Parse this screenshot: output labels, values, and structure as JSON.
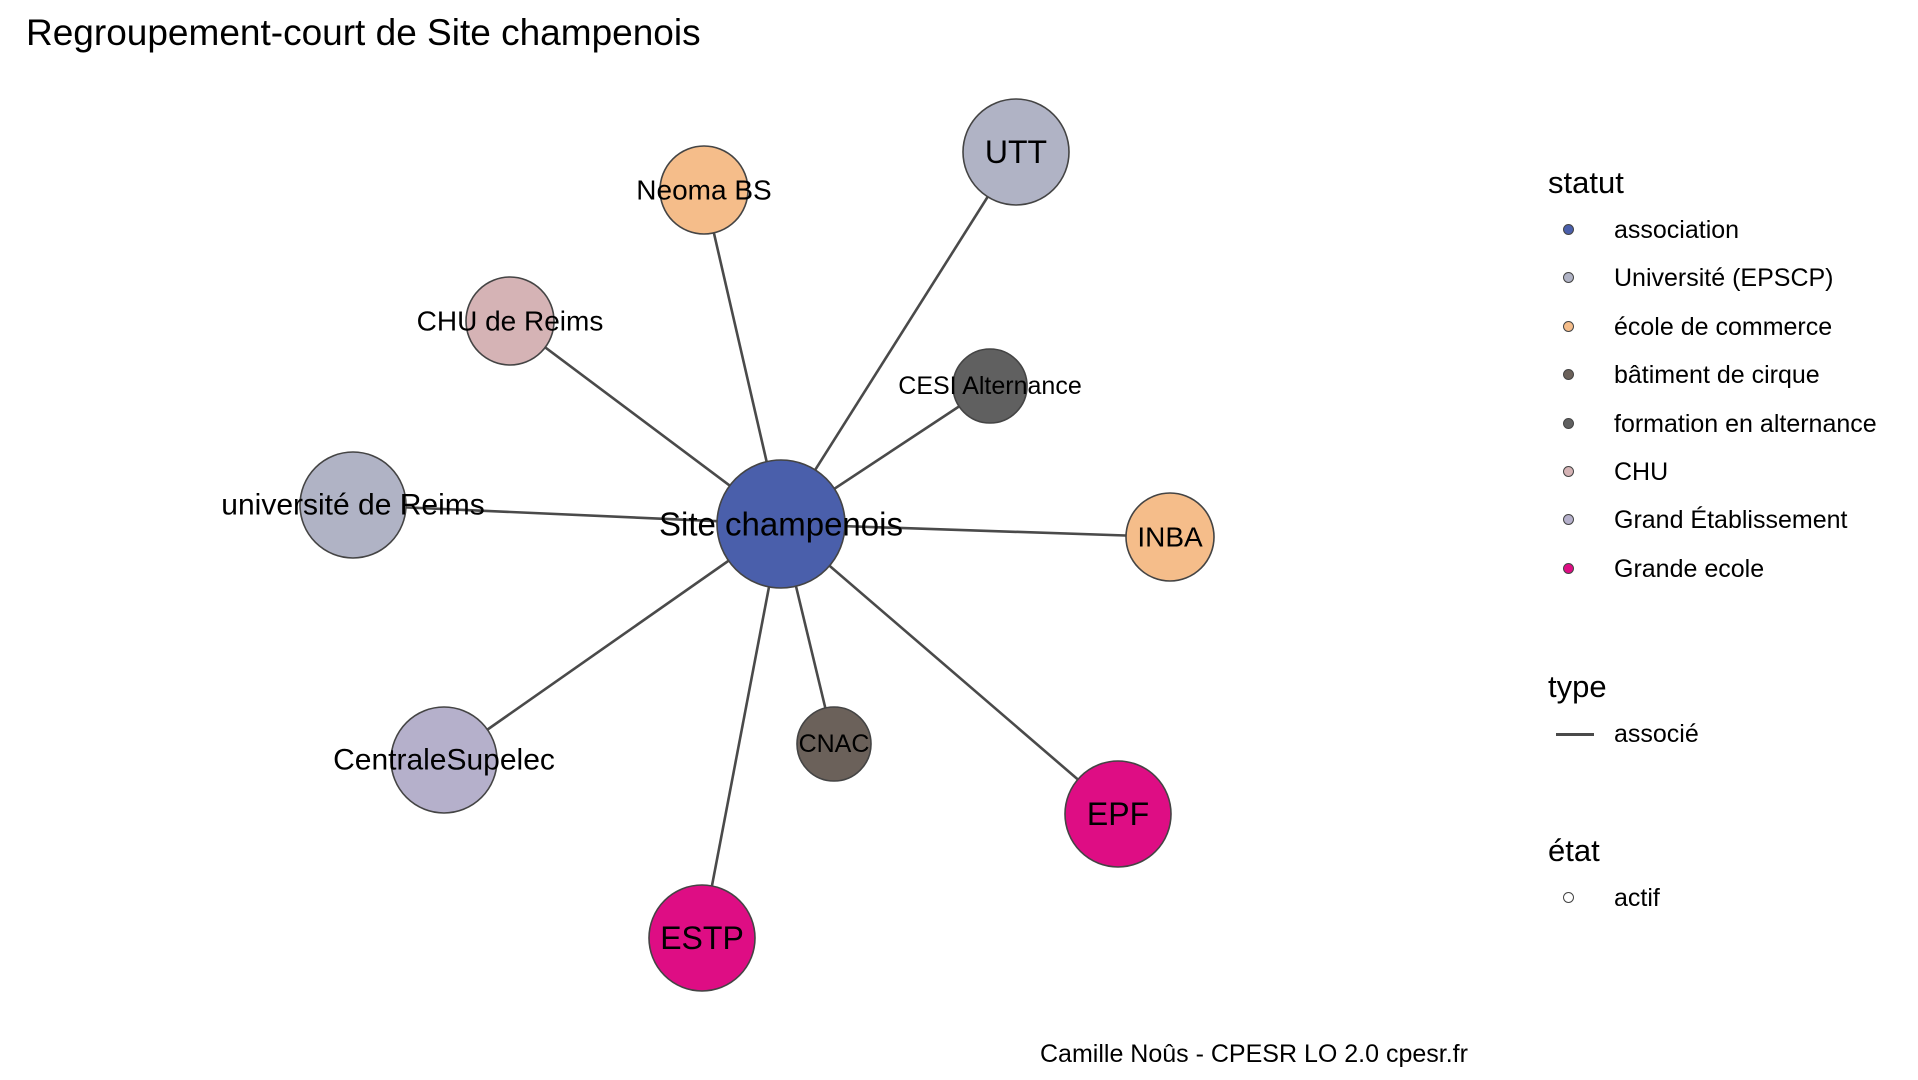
{
  "title": "Regroupement-court de Site champenois",
  "caption": "Camille Noûs - CPESR LO 2.0 cpesr.fr",
  "diagram": {
    "center": "site-champenois",
    "nodes": [
      {
        "id": "site-champenois",
        "label": "Site champenois",
        "statut": "association",
        "color": "#4a5fab"
      },
      {
        "id": "utt",
        "label": "UTT",
        "statut": "Université (EPSCP)",
        "color": "#b0b3c5"
      },
      {
        "id": "neoma-bs",
        "label": "Neoma BS",
        "statut": "école de commerce",
        "color": "#f5bd8a"
      },
      {
        "id": "chu-de-reims",
        "label": "CHU de Reims",
        "statut": "CHU",
        "color": "#d5b3b5"
      },
      {
        "id": "cesi-alternance",
        "label": "CESI Alternance",
        "statut": "formation en alternance",
        "color": "#606060"
      },
      {
        "id": "universite-de-reims",
        "label": "université de Reims",
        "statut": "Université (EPSCP)",
        "color": "#b0b3c5"
      },
      {
        "id": "inba",
        "label": "INBA",
        "statut": "école de commerce",
        "color": "#f5bd8a"
      },
      {
        "id": "centralesupelec",
        "label": "CentraleSupelec",
        "statut": "Grand Établissement",
        "color": "#b5b0cb"
      },
      {
        "id": "cnac",
        "label": "CNAC",
        "statut": "bâtiment de cirque",
        "color": "#6b615a"
      },
      {
        "id": "epf",
        "label": "EPF",
        "statut": "Grande ecole",
        "color": "#de0d84"
      },
      {
        "id": "estp",
        "label": "ESTP",
        "statut": "Grande ecole",
        "color": "#de0d84"
      }
    ],
    "edges": [
      {
        "from": "site-champenois",
        "to": "utt",
        "type": "associé"
      },
      {
        "from": "site-champenois",
        "to": "neoma-bs",
        "type": "associé"
      },
      {
        "from": "site-champenois",
        "to": "chu-de-reims",
        "type": "associé"
      },
      {
        "from": "site-champenois",
        "to": "cesi-alternance",
        "type": "associé"
      },
      {
        "from": "site-champenois",
        "to": "universite-de-reims",
        "type": "associé"
      },
      {
        "from": "site-champenois",
        "to": "inba",
        "type": "associé"
      },
      {
        "from": "site-champenois",
        "to": "centralesupelec",
        "type": "associé"
      },
      {
        "from": "site-champenois",
        "to": "cnac",
        "type": "associé"
      },
      {
        "from": "site-champenois",
        "to": "epf",
        "type": "associé"
      },
      {
        "from": "site-champenois",
        "to": "estp",
        "type": "associé"
      }
    ]
  },
  "legend": {
    "statut": {
      "title": "statut",
      "items": [
        {
          "label": "association",
          "color": "#4a5fab"
        },
        {
          "label": "Université (EPSCP)",
          "color": "#b0b3c5"
        },
        {
          "label": "école de commerce",
          "color": "#f5bd8a"
        },
        {
          "label": "bâtiment de cirque",
          "color": "#6b615a"
        },
        {
          "label": "formation en alternance",
          "color": "#606060"
        },
        {
          "label": "CHU",
          "color": "#d5b3b5"
        },
        {
          "label": "Grand Établissement",
          "color": "#b5b0cb"
        },
        {
          "label": "Grande ecole",
          "color": "#de0d84"
        }
      ]
    },
    "type": {
      "title": "type",
      "items": [
        {
          "label": "associé",
          "color": "#4a4a4a"
        }
      ]
    },
    "etat": {
      "title": "état",
      "items": [
        {
          "label": "actif",
          "color": "#ffffff"
        }
      ]
    }
  }
}
